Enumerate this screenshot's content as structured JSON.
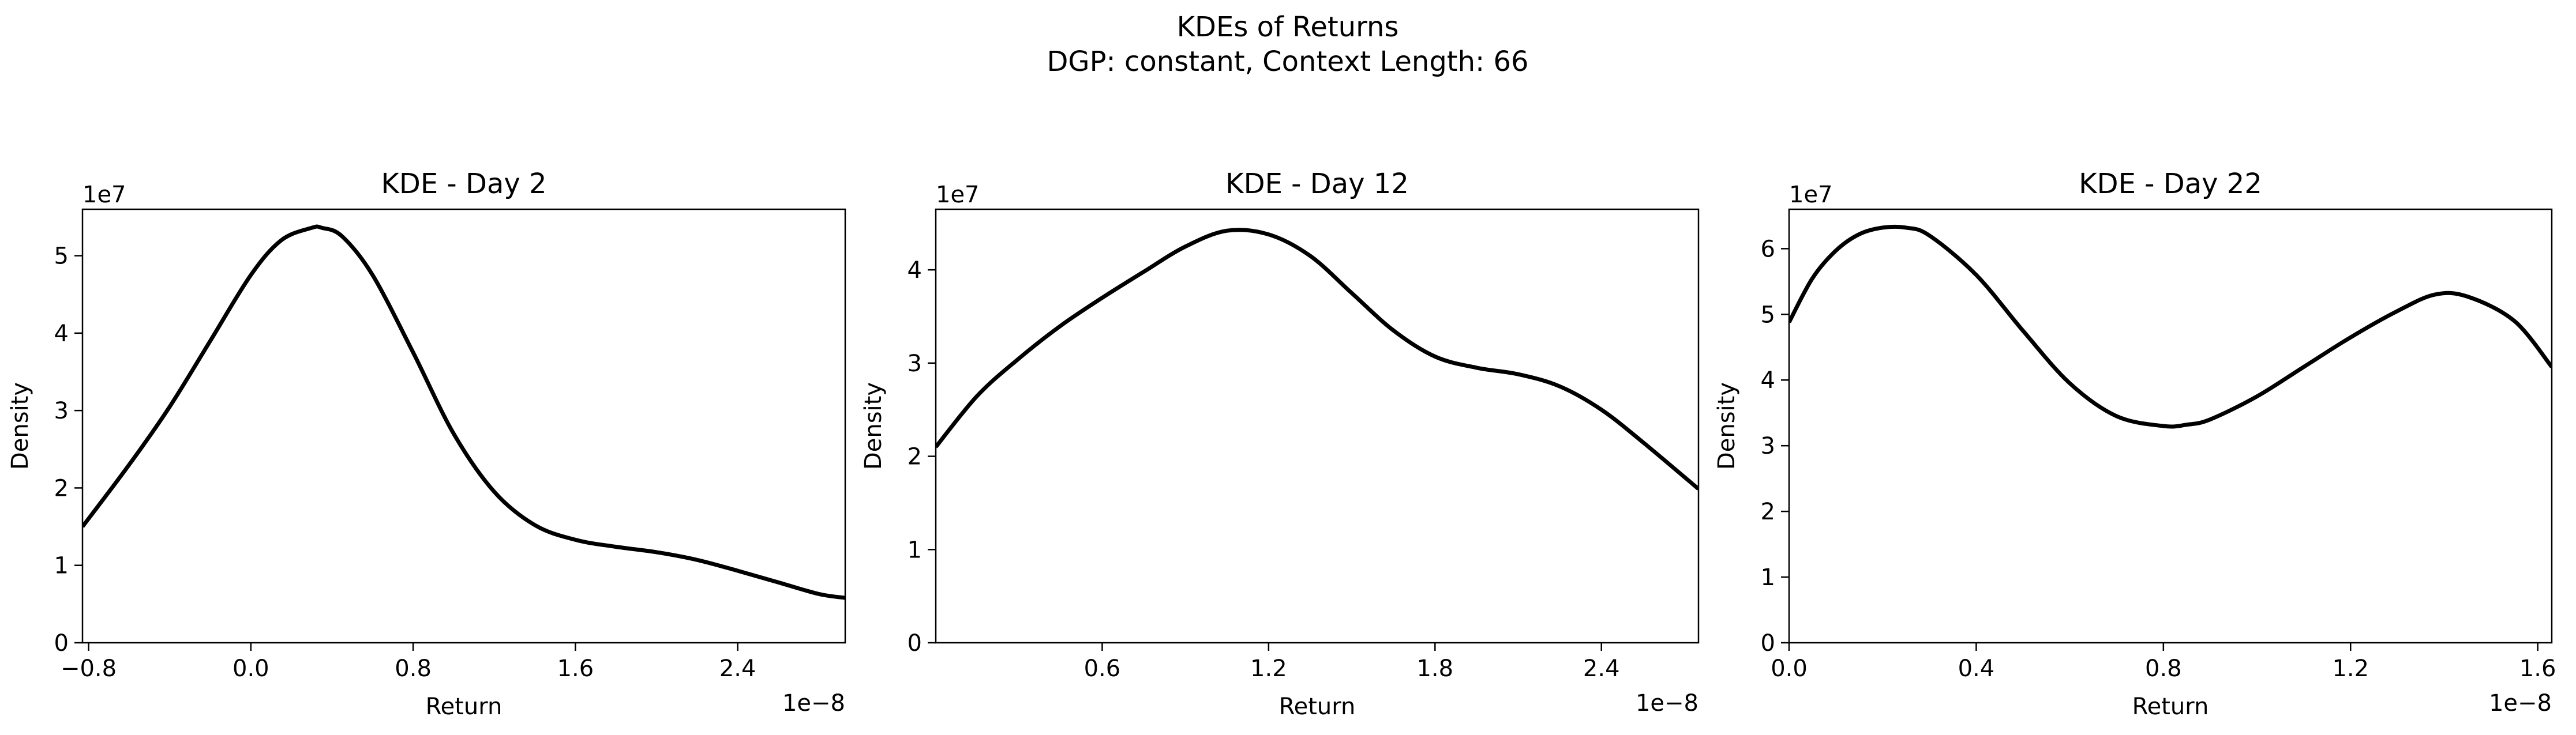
{
  "figure": {
    "title": "KDEs of Returns",
    "subtitle": "DGP: constant, Context Length: 66"
  },
  "chart_data": [
    {
      "type": "line",
      "title": "KDE - Day 2",
      "xlabel": "Return",
      "ylabel": "Density",
      "x_multiplier": "1e−8",
      "y_multiplier": "1e7",
      "xlim": [
        -0.83,
        2.93
      ],
      "ylim": [
        0,
        5.6
      ],
      "xticks": [
        -0.8,
        0.0,
        0.8,
        1.6,
        2.4
      ],
      "xtick_labels": [
        "−0.8",
        "0.0",
        "0.8",
        "1.6",
        "2.4"
      ],
      "yticks": [
        0,
        1,
        2,
        3,
        4,
        5
      ],
      "ytick_labels": [
        "0",
        "1",
        "2",
        "3",
        "4",
        "5"
      ],
      "grid": false,
      "series": [
        {
          "x": [
            -0.83,
            -0.6,
            -0.4,
            -0.2,
            0.0,
            0.15,
            0.3,
            0.35,
            0.45,
            0.6,
            0.8,
            1.0,
            1.2,
            1.4,
            1.6,
            1.8,
            2.0,
            2.2,
            2.4,
            2.6,
            2.8,
            2.93
          ],
          "y": [
            1.5,
            2.3,
            3.05,
            3.9,
            4.75,
            5.2,
            5.36,
            5.36,
            5.25,
            4.75,
            3.75,
            2.7,
            1.95,
            1.52,
            1.33,
            1.24,
            1.17,
            1.07,
            0.93,
            0.78,
            0.63,
            0.58
          ]
        }
      ]
    },
    {
      "type": "line",
      "title": "KDE - Day 12",
      "xlabel": "Return",
      "ylabel": "Density",
      "x_multiplier": "1e−8",
      "y_multiplier": "1e7",
      "xlim": [
        0.0,
        2.75
      ],
      "ylim": [
        0,
        4.65
      ],
      "xticks": [
        0.6,
        1.2,
        1.8,
        2.4
      ],
      "xtick_labels": [
        "0.6",
        "1.2",
        "1.8",
        "2.4"
      ],
      "yticks": [
        0,
        1,
        2,
        3,
        4
      ],
      "ytick_labels": [
        "0",
        "1",
        "2",
        "3",
        "4"
      ],
      "grid": false,
      "series": [
        {
          "x": [
            0.0,
            0.15,
            0.3,
            0.45,
            0.6,
            0.75,
            0.9,
            1.05,
            1.2,
            1.35,
            1.5,
            1.65,
            1.8,
            1.95,
            2.1,
            2.25,
            2.4,
            2.55,
            2.75
          ],
          "y": [
            2.1,
            2.65,
            3.05,
            3.4,
            3.7,
            3.98,
            4.25,
            4.42,
            4.38,
            4.15,
            3.75,
            3.35,
            3.07,
            2.95,
            2.88,
            2.75,
            2.5,
            2.15,
            1.65
          ]
        }
      ]
    },
    {
      "type": "line",
      "title": "KDE - Day 22",
      "xlabel": "Return",
      "ylabel": "Density",
      "x_multiplier": "1e−8",
      "y_multiplier": "1e7",
      "xlim": [
        0.0,
        1.63
      ],
      "ylim": [
        0,
        6.6
      ],
      "xticks": [
        0.0,
        0.4,
        0.8,
        1.2,
        1.6
      ],
      "xtick_labels": [
        "0.0",
        "0.4",
        "0.8",
        "1.2",
        "1.6"
      ],
      "yticks": [
        0,
        1,
        2,
        3,
        4,
        5,
        6
      ],
      "ytick_labels": [
        "0",
        "1",
        "2",
        "3",
        "4",
        "5",
        "6"
      ],
      "grid": false,
      "series": [
        {
          "x": [
            0.0,
            0.05,
            0.1,
            0.15,
            0.2,
            0.25,
            0.3,
            0.4,
            0.5,
            0.6,
            0.7,
            0.8,
            0.85,
            0.9,
            1.0,
            1.1,
            1.2,
            1.3,
            1.38,
            1.45,
            1.55,
            1.63
          ],
          "y": [
            4.88,
            5.55,
            5.97,
            6.22,
            6.32,
            6.32,
            6.2,
            5.6,
            4.75,
            3.95,
            3.45,
            3.3,
            3.32,
            3.4,
            3.75,
            4.2,
            4.65,
            5.05,
            5.3,
            5.27,
            4.9,
            4.2
          ]
        }
      ]
    }
  ]
}
